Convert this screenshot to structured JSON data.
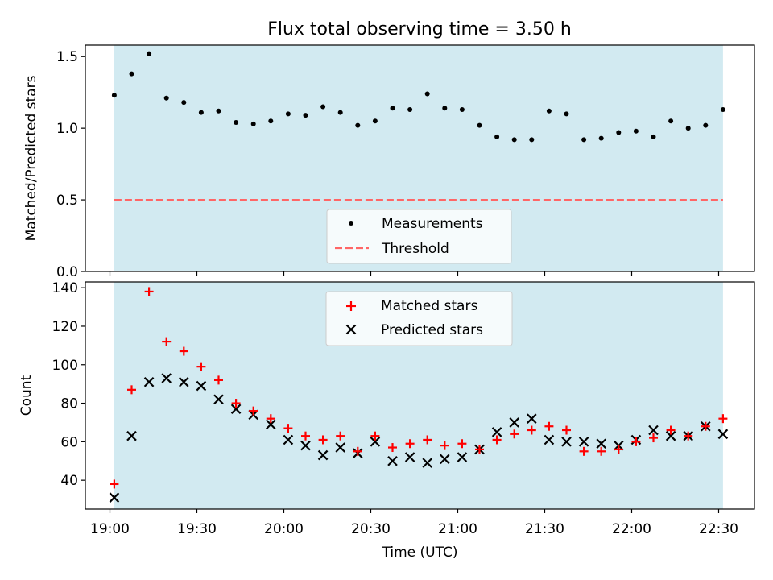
{
  "title": "Flux total observing time = 3.50 h",
  "colors": {
    "shade": "#add8e6",
    "matched": "#ff0000",
    "predicted": "#000000",
    "measurement": "#000000",
    "threshold": "#ff6666"
  },
  "chart_data": [
    {
      "type": "scatter",
      "ylabel": "Matched/Predicted stars",
      "xlabel": "",
      "ylim": [
        0,
        1.58
      ],
      "yticks": [
        0.0,
        0.5,
        1.0,
        1.5
      ],
      "ytick_labels": [
        "0.0",
        "0.5",
        "1.0",
        "1.5"
      ],
      "x_unit": "minutes after 19:00 UTC",
      "shaded_span": [
        1.5,
        211.5
      ],
      "threshold": 0.5,
      "legend": {
        "position": "bottom-center",
        "items": [
          "Measurements",
          "Threshold"
        ]
      },
      "series": [
        {
          "name": "Measurements",
          "marker": "dot",
          "x": [
            1.5,
            7.5,
            13.5,
            19.5,
            25.5,
            31.5,
            37.5,
            43.5,
            49.5,
            55.5,
            61.5,
            67.5,
            73.5,
            79.5,
            85.5,
            91.5,
            97.5,
            103.5,
            109.5,
            115.5,
            121.5,
            127.5,
            133.5,
            139.5,
            145.5,
            151.5,
            157.5,
            163.5,
            169.5,
            175.5,
            181.5,
            187.5,
            193.5,
            199.5,
            205.5,
            211.5
          ],
          "y": [
            1.23,
            1.38,
            1.52,
            1.21,
            1.18,
            1.11,
            1.12,
            1.04,
            1.03,
            1.05,
            1.1,
            1.09,
            1.15,
            1.11,
            1.02,
            1.05,
            1.14,
            1.13,
            1.24,
            1.14,
            1.13,
            1.02,
            0.94,
            0.92,
            0.92,
            1.12,
            1.1,
            0.92,
            0.93,
            0.97,
            0.98,
            0.94,
            1.05,
            1.0,
            1.02,
            1.13
          ]
        }
      ]
    },
    {
      "type": "scatter",
      "ylabel": "Count",
      "xlabel": "Time (UTC)",
      "ylim": [
        25,
        143
      ],
      "yticks": [
        40,
        60,
        80,
        100,
        120,
        140
      ],
      "ytick_labels": [
        "40",
        "60",
        "80",
        "100",
        "120",
        "140"
      ],
      "x_unit": "minutes after 19:00 UTC",
      "xticks": [
        0,
        30,
        60,
        90,
        120,
        150,
        180,
        210
      ],
      "xtick_labels": [
        "19:00",
        "19:30",
        "20:00",
        "20:30",
        "21:00",
        "21:30",
        "22:00",
        "22:30"
      ],
      "shaded_span": [
        1.5,
        211.5
      ],
      "legend": {
        "position": "top-center",
        "items": [
          "Matched stars",
          "Predicted stars"
        ]
      },
      "series": [
        {
          "name": "Matched stars",
          "marker": "plus",
          "x": [
            1.5,
            7.5,
            13.5,
            19.5,
            25.5,
            31.5,
            37.5,
            43.5,
            49.5,
            55.5,
            61.5,
            67.5,
            73.5,
            79.5,
            85.5,
            91.5,
            97.5,
            103.5,
            109.5,
            115.5,
            121.5,
            127.5,
            133.5,
            139.5,
            145.5,
            151.5,
            157.5,
            163.5,
            169.5,
            175.5,
            181.5,
            187.5,
            193.5,
            199.5,
            205.5,
            211.5
          ],
          "y": [
            38,
            87,
            138,
            112,
            107,
            99,
            92,
            80,
            76,
            72,
            67,
            63,
            61,
            63,
            55,
            63,
            57,
            59,
            61,
            58,
            59,
            56,
            61,
            64,
            66,
            68,
            66,
            55,
            55,
            56,
            60,
            62,
            66,
            63,
            68,
            72
          ]
        },
        {
          "name": "Predicted stars",
          "marker": "x",
          "x": [
            1.5,
            7.5,
            13.5,
            19.5,
            25.5,
            31.5,
            37.5,
            43.5,
            49.5,
            55.5,
            61.5,
            67.5,
            73.5,
            79.5,
            85.5,
            91.5,
            97.5,
            103.5,
            109.5,
            115.5,
            121.5,
            127.5,
            133.5,
            139.5,
            145.5,
            151.5,
            157.5,
            163.5,
            169.5,
            175.5,
            181.5,
            187.5,
            193.5,
            199.5,
            205.5,
            211.5
          ],
          "y": [
            31,
            63,
            91,
            93,
            91,
            89,
            82,
            77,
            74,
            69,
            61,
            58,
            53,
            57,
            54,
            60,
            50,
            52,
            49,
            51,
            52,
            56,
            65,
            70,
            72,
            61,
            60,
            60,
            59,
            58,
            61,
            66,
            63,
            63,
            68,
            64
          ]
        }
      ]
    }
  ]
}
